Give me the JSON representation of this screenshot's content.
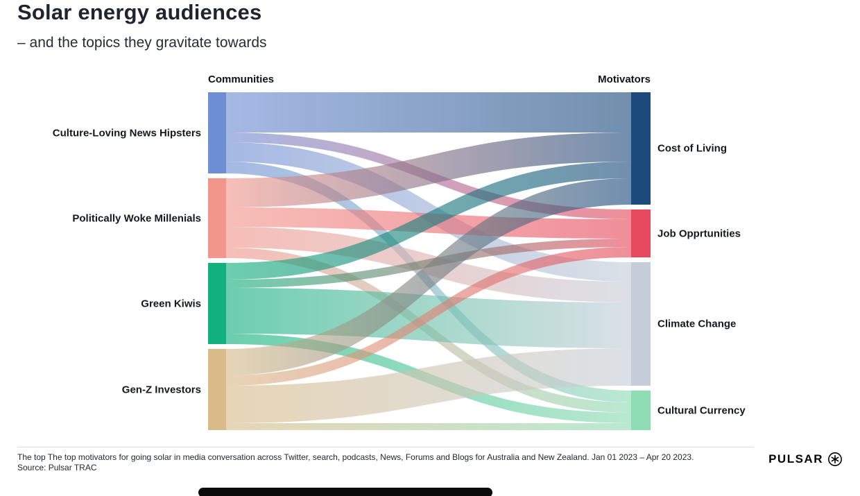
{
  "header": {
    "title": "Solar energy audiences",
    "subtitle": "– and the topics they gravitate towards"
  },
  "chart_data": {
    "type": "sankey",
    "left_axis_label": "Communities",
    "right_axis_label": "Motivators",
    "sources": [
      {
        "label": "Culture-Loving News Hipsters",
        "color": "#6e8ed3"
      },
      {
        "label": "Politically Woke Millenials",
        "color": "#f2968b"
      },
      {
        "label": "Green Kiwis",
        "color": "#12b07c"
      },
      {
        "label": "Gen-Z Investors",
        "color": "#d8bb89"
      }
    ],
    "targets": [
      {
        "label": "Cost of Living",
        "color": "#1c4a7c"
      },
      {
        "label": "Job Opprtunities",
        "color": "#e6495c"
      },
      {
        "label": "Climate Change",
        "color": "#c5ced8"
      },
      {
        "label": "Cultural Currency",
        "color": "#8edcb4"
      }
    ],
    "links": [
      {
        "source": 0,
        "target": 0,
        "value": 58
      },
      {
        "source": 0,
        "target": 1,
        "value": 14
      },
      {
        "source": 0,
        "target": 2,
        "value": 28
      },
      {
        "source": 0,
        "target": 3,
        "value": 17
      },
      {
        "source": 1,
        "target": 0,
        "value": 42
      },
      {
        "source": 1,
        "target": 1,
        "value": 28
      },
      {
        "source": 1,
        "target": 2,
        "value": 30
      },
      {
        "source": 1,
        "target": 3,
        "value": 15
      },
      {
        "source": 2,
        "target": 0,
        "value": 24
      },
      {
        "source": 2,
        "target": 1,
        "value": 12
      },
      {
        "source": 2,
        "target": 2,
        "value": 66
      },
      {
        "source": 2,
        "target": 3,
        "value": 15
      },
      {
        "source": 3,
        "target": 0,
        "value": 38
      },
      {
        "source": 3,
        "target": 1,
        "value": 15
      },
      {
        "source": 3,
        "target": 2,
        "value": 54
      },
      {
        "source": 3,
        "target": 3,
        "value": 10
      }
    ]
  },
  "footer": {
    "caption": "The top The top motivators for going solar in media conversation across Twitter, search, podcasts, News, Forums and Blogs for Australia and New Zealand. Jan 01 2023 – Apr 20 2023.",
    "source": "Source: Pulsar TRAC",
    "brand": "PULSAR"
  }
}
